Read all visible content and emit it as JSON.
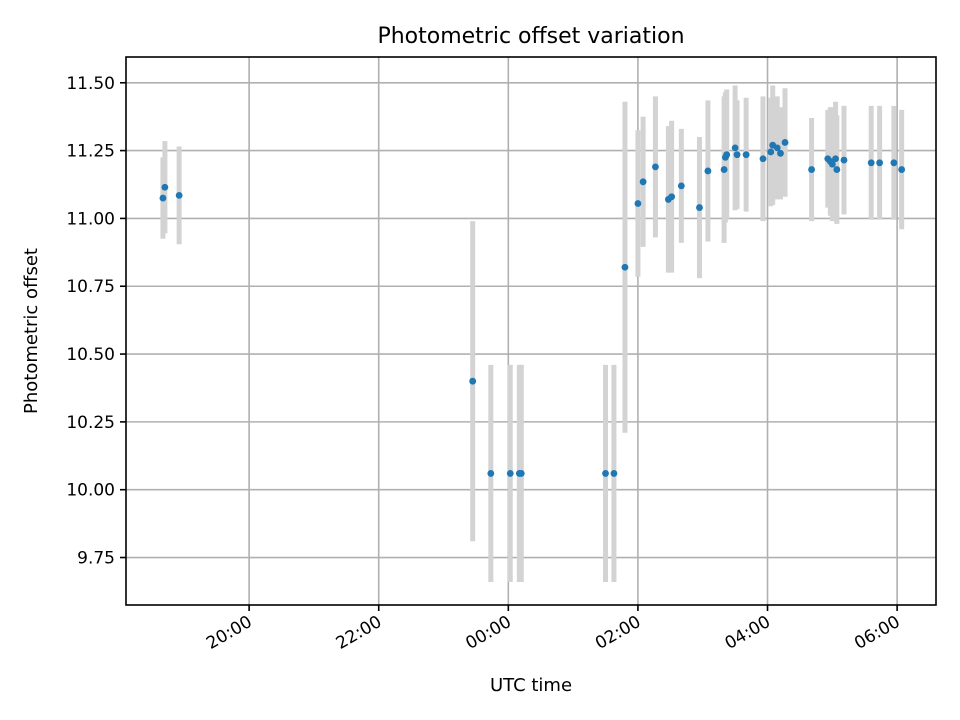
{
  "chart_data": {
    "type": "scatter",
    "title": "Photometric offset variation",
    "xlabel": "UTC time",
    "ylabel": "Photometric offset",
    "x_unit": "hours (UTC, relative to 00:00 of the second night)",
    "xlim": [
      -5.9,
      6.6
    ],
    "ylim": [
      9.575,
      11.595
    ],
    "x_ticks": [
      {
        "value": -4,
        "label": "20:00"
      },
      {
        "value": -2,
        "label": "22:00"
      },
      {
        "value": 0,
        "label": "00:00"
      },
      {
        "value": 2,
        "label": "02:00"
      },
      {
        "value": 4,
        "label": "04:00"
      },
      {
        "value": 6,
        "label": "06:00"
      }
    ],
    "y_ticks": [
      {
        "value": 9.75,
        "label": "9.75"
      },
      {
        "value": 10.0,
        "label": "10.00"
      },
      {
        "value": 10.25,
        "label": "10.25"
      },
      {
        "value": 10.5,
        "label": "10.50"
      },
      {
        "value": 10.75,
        "label": "10.75"
      },
      {
        "value": 11.0,
        "label": "11.00"
      },
      {
        "value": 11.25,
        "label": "11.25"
      },
      {
        "value": 11.5,
        "label": "11.50"
      }
    ],
    "grid": true,
    "colors": {
      "points": "#1f77b4",
      "errorbars": "#d3d3d3"
    },
    "points": [
      {
        "x": -5.33,
        "y": 11.075,
        "err": 0.15
      },
      {
        "x": -5.3,
        "y": 11.115,
        "err": 0.17
      },
      {
        "x": -5.08,
        "y": 11.085,
        "err": 0.18
      },
      {
        "x": -0.55,
        "y": 10.4,
        "err": 0.59
      },
      {
        "x": -0.27,
        "y": 10.06,
        "err": 0.4
      },
      {
        "x": 0.03,
        "y": 10.06,
        "err": 0.4
      },
      {
        "x": 0.17,
        "y": 10.06,
        "err": 0.4
      },
      {
        "x": 0.2,
        "y": 10.06,
        "err": 0.4
      },
      {
        "x": 1.5,
        "y": 10.06,
        "err": 0.4
      },
      {
        "x": 1.63,
        "y": 10.06,
        "err": 0.4
      },
      {
        "x": 1.8,
        "y": 10.82,
        "err": 0.61
      },
      {
        "x": 2.0,
        "y": 11.055,
        "err": 0.27
      },
      {
        "x": 2.08,
        "y": 11.135,
        "err": 0.24
      },
      {
        "x": 2.27,
        "y": 11.19,
        "err": 0.26
      },
      {
        "x": 2.47,
        "y": 11.07,
        "err": 0.27
      },
      {
        "x": 2.52,
        "y": 11.08,
        "err": 0.28
      },
      {
        "x": 2.67,
        "y": 11.12,
        "err": 0.21
      },
      {
        "x": 2.95,
        "y": 11.04,
        "err": 0.26
      },
      {
        "x": 3.08,
        "y": 11.175,
        "err": 0.26
      },
      {
        "x": 3.33,
        "y": 11.18,
        "err": 0.27
      },
      {
        "x": 3.35,
        "y": 11.225,
        "err": 0.24
      },
      {
        "x": 3.37,
        "y": 11.235,
        "err": 0.24
      },
      {
        "x": 3.5,
        "y": 11.26,
        "err": 0.23
      },
      {
        "x": 3.53,
        "y": 11.235,
        "err": 0.2
      },
      {
        "x": 3.67,
        "y": 11.235,
        "err": 0.21
      },
      {
        "x": 3.93,
        "y": 11.22,
        "err": 0.23
      },
      {
        "x": 4.05,
        "y": 11.245,
        "err": 0.2
      },
      {
        "x": 4.08,
        "y": 11.27,
        "err": 0.22
      },
      {
        "x": 4.15,
        "y": 11.26,
        "err": 0.19
      },
      {
        "x": 4.2,
        "y": 11.24,
        "err": 0.17
      },
      {
        "x": 4.27,
        "y": 11.28,
        "err": 0.2
      },
      {
        "x": 4.68,
        "y": 11.18,
        "err": 0.19
      },
      {
        "x": 4.93,
        "y": 11.22,
        "err": 0.18
      },
      {
        "x": 4.97,
        "y": 11.21,
        "err": 0.2
      },
      {
        "x": 5.0,
        "y": 11.2,
        "err": 0.21
      },
      {
        "x": 5.05,
        "y": 11.22,
        "err": 0.21
      },
      {
        "x": 5.07,
        "y": 11.18,
        "err": 0.2
      },
      {
        "x": 5.18,
        "y": 11.215,
        "err": 0.2
      },
      {
        "x": 5.6,
        "y": 11.205,
        "err": 0.21
      },
      {
        "x": 5.73,
        "y": 11.205,
        "err": 0.21
      },
      {
        "x": 5.95,
        "y": 11.205,
        "err": 0.21
      },
      {
        "x": 6.07,
        "y": 11.18,
        "err": 0.22
      }
    ]
  }
}
